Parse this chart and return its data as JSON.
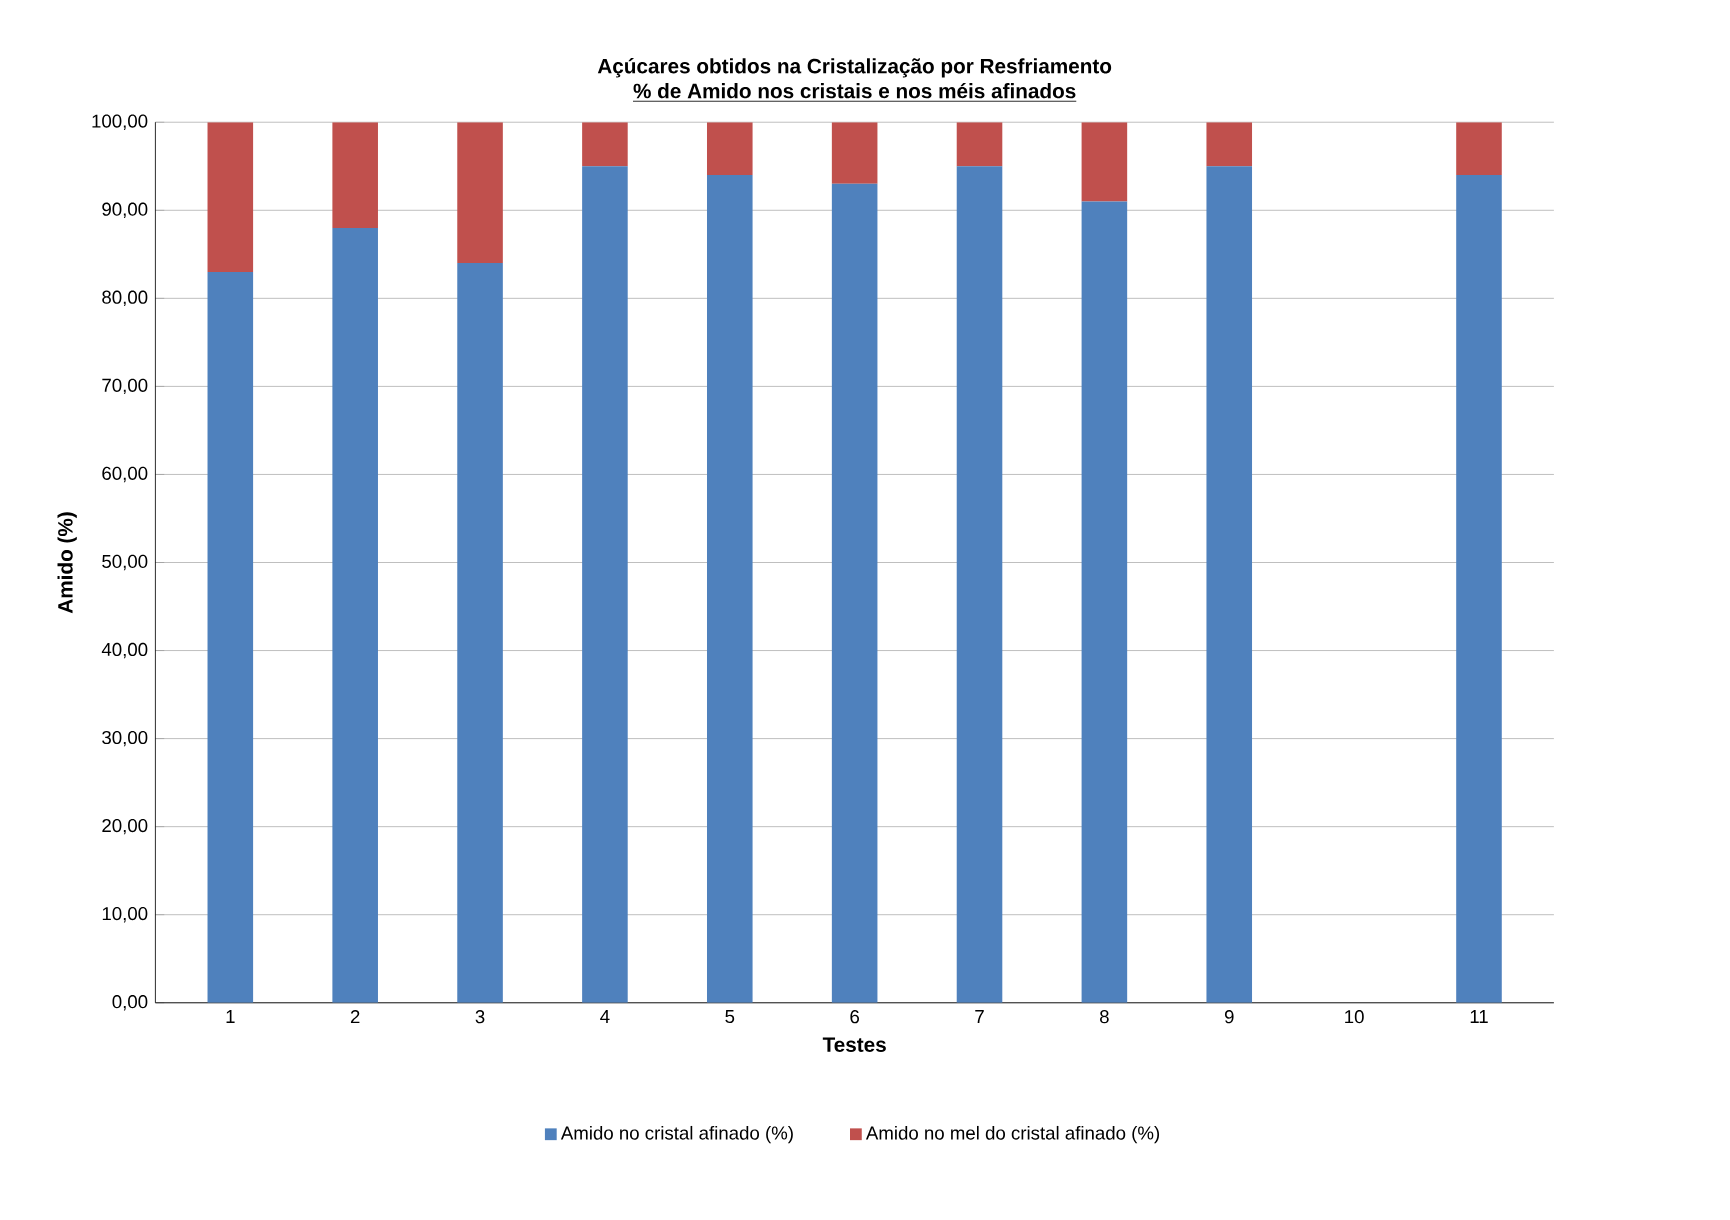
{
  "chart_data": {
    "type": "bar",
    "stacked": true,
    "title": "Açúcares obtidos na Cristalização por Resfriamento",
    "subtitle": "% de Amido nos cristais e nos méis afinados",
    "xlabel": "Testes",
    "ylabel": "Amido (%)",
    "categories": [
      "1",
      "2",
      "3",
      "4",
      "5",
      "6",
      "7",
      "8",
      "9",
      "10",
      "11"
    ],
    "series": [
      {
        "name": "Amido no cristal afinado (%)",
        "color": "#4f81bd",
        "values": [
          83,
          88,
          84,
          95,
          94,
          93,
          95,
          91,
          95,
          0,
          94
        ]
      },
      {
        "name": "Amido no mel do cristal afinado (%)",
        "color": "#c0504d",
        "values": [
          17,
          12,
          16,
          5,
          6,
          7,
          5,
          9,
          5,
          0,
          6
        ]
      }
    ],
    "ylim": [
      0,
      100
    ],
    "yticks": [
      {
        "value": 0,
        "label": "0,00"
      },
      {
        "value": 10,
        "label": "10,00"
      },
      {
        "value": 20,
        "label": "20,00"
      },
      {
        "value": 30,
        "label": "30,00"
      },
      {
        "value": 40,
        "label": "40,00"
      },
      {
        "value": 50,
        "label": "50,00"
      },
      {
        "value": 60,
        "label": "60,00"
      },
      {
        "value": 70,
        "label": "70,00"
      },
      {
        "value": 80,
        "label": "80,00"
      },
      {
        "value": 90,
        "label": "90,00"
      },
      {
        "value": 100,
        "label": "100,00"
      }
    ],
    "grid": "y",
    "legend": "bottom"
  }
}
